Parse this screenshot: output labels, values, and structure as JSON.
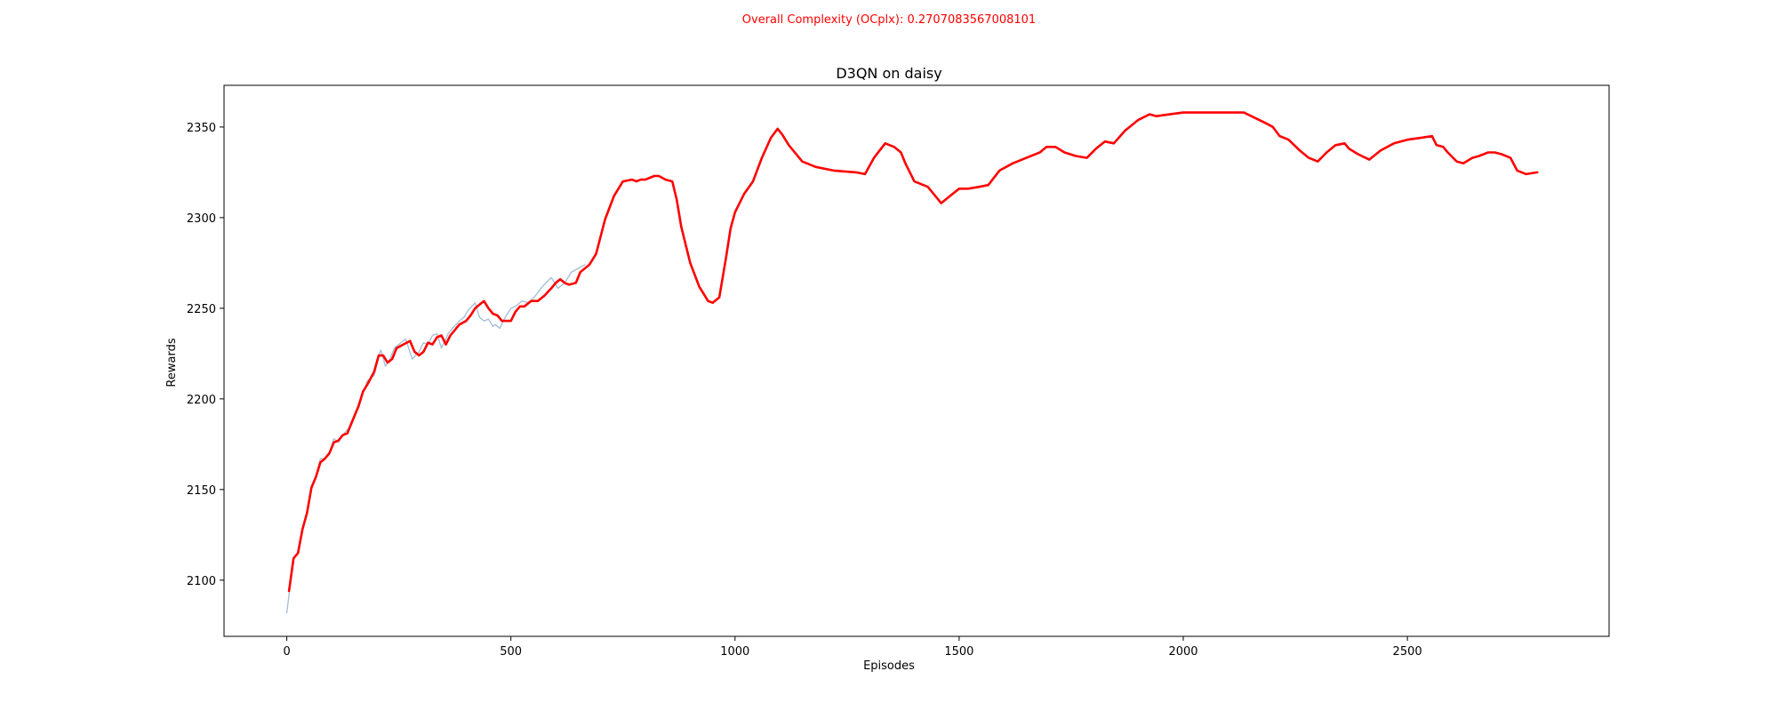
{
  "suptitle": "Overall Complexity (OCplx): 0.2707083567008101",
  "colors": {
    "suptitle": "#ff0000",
    "smoothed_line": "#ff0000",
    "raw_line": "#a9bfd6",
    "axes": "#000000",
    "background": "#ffffff"
  },
  "chart_data": {
    "type": "line",
    "title": "D3QN on daisy",
    "xlabel": "Episodes",
    "ylabel": "Rewards",
    "xlim": [
      -140,
      2950
    ],
    "ylim": [
      2069,
      2373
    ],
    "xticks": [
      0,
      500,
      1000,
      1500,
      2000,
      2500
    ],
    "yticks": [
      2100,
      2150,
      2200,
      2250,
      2300,
      2350
    ],
    "grid": false,
    "legend": "none",
    "series": [
      {
        "style": "raw",
        "x": [
          0,
          5,
          15,
          25,
          35,
          45,
          55,
          65,
          75,
          85,
          95,
          105,
          115,
          125,
          135,
          145,
          160,
          170,
          180,
          195,
          205,
          210,
          220,
          230,
          240,
          250,
          265,
          280,
          295,
          305,
          315,
          325,
          335,
          345,
          355,
          360,
          370,
          385,
          395,
          405,
          420,
          430,
          440,
          450,
          460,
          465,
          475,
          485,
          500,
          510,
          525,
          540,
          555,
          570,
          590,
          605,
          620,
          635,
          650,
          665
        ],
        "y": [
          2082,
          2092,
          2112,
          2115,
          2128,
          2137,
          2151,
          2157,
          2167,
          2167,
          2170,
          2178,
          2176,
          2180,
          2183,
          2186,
          2196,
          2203,
          2210,
          2213,
          2224,
          2227,
          2218,
          2222,
          2228,
          2230,
          2233,
          2222,
          2226,
          2231,
          2230,
          2235,
          2236,
          2228,
          2233,
          2236,
          2239,
          2243,
          2245,
          2249,
          2253,
          2245,
          2243,
          2244,
          2240,
          2241,
          2239,
          2244,
          2250,
          2251,
          2254,
          2253,
          2257,
          2262,
          2267,
          2261,
          2264,
          2270,
          2272,
          2274
        ]
      },
      {
        "style": "smoothed",
        "x": [
          5,
          15,
          25,
          35,
          45,
          55,
          65,
          75,
          85,
          95,
          105,
          115,
          125,
          135,
          145,
          160,
          170,
          180,
          195,
          205,
          215,
          225,
          235,
          245,
          260,
          275,
          285,
          295,
          305,
          315,
          325,
          335,
          345,
          355,
          365,
          375,
          385,
          400,
          410,
          420,
          430,
          440,
          450,
          460,
          470,
          480,
          490,
          500,
          510,
          520,
          530,
          545,
          560,
          575,
          590,
          600,
          610,
          620,
          630,
          645,
          655,
          665,
          675,
          690,
          710,
          730,
          750,
          770,
          780,
          790,
          800,
          810,
          820,
          830,
          845,
          860,
          870,
          880,
          900,
          920,
          940,
          950,
          965,
          980,
          990,
          1000,
          1020,
          1040,
          1060,
          1080,
          1095,
          1105,
          1120,
          1150,
          1180,
          1220,
          1270,
          1290,
          1310,
          1335,
          1355,
          1370,
          1380,
          1400,
          1430,
          1460,
          1480,
          1500,
          1520,
          1545,
          1565,
          1590,
          1620,
          1650,
          1680,
          1695,
          1715,
          1735,
          1760,
          1785,
          1805,
          1825,
          1845,
          1870,
          1900,
          1925,
          1940,
          1970,
          2000,
          2050,
          2100,
          2135,
          2160,
          2185,
          2200,
          2215,
          2235,
          2260,
          2280,
          2300,
          2320,
          2340,
          2360,
          2370,
          2390,
          2415,
          2440,
          2470,
          2500,
          2530,
          2555,
          2565,
          2580,
          2590,
          2610,
          2625,
          2645,
          2660,
          2680,
          2695,
          2710,
          2730,
          2745,
          2765,
          2790
        ],
        "y": [
          2094,
          2112,
          2115,
          2128,
          2137,
          2151,
          2157,
          2165,
          2167,
          2170,
          2176,
          2177,
          2180,
          2181,
          2187,
          2196,
          2204,
          2208,
          2215,
          2224,
          2224,
          2220,
          2222,
          2228,
          2230,
          2232,
          2226,
          2224,
          2226,
          2231,
          2230,
          2234,
          2235,
          2230,
          2235,
          2238,
          2241,
          2243,
          2246,
          2250,
          2252,
          2254,
          2250,
          2247,
          2246,
          2243,
          2243,
          2243,
          2248,
          2251,
          2251,
          2254,
          2254,
          2257,
          2261,
          2264,
          2266,
          2264,
          2263,
          2264,
          2270,
          2272,
          2274,
          2280,
          2299,
          2312,
          2320,
          2321,
          2320,
          2321,
          2321,
          2322,
          2323,
          2323,
          2321,
          2320,
          2310,
          2295,
          2275,
          2262,
          2254,
          2253,
          2256,
          2278,
          2294,
          2303,
          2313,
          2320,
          2333,
          2344,
          2349,
          2346,
          2340,
          2331,
          2328,
          2326,
          2325,
          2324,
          2333,
          2341,
          2339,
          2336,
          2330,
          2320,
          2317,
          2308,
          2312,
          2316,
          2316,
          2317,
          2318,
          2326,
          2330,
          2333,
          2336,
          2339,
          2339,
          2336,
          2334,
          2333,
          2338,
          2342,
          2341,
          2348,
          2354,
          2357,
          2356,
          2357,
          2358,
          2358,
          2358,
          2358,
          2355,
          2352,
          2350,
          2345,
          2343,
          2337,
          2333,
          2331,
          2336,
          2340,
          2341,
          2338,
          2335,
          2332,
          2337,
          2341,
          2343,
          2344,
          2345,
          2340,
          2339,
          2336,
          2331,
          2330,
          2333,
          2334,
          2336,
          2336,
          2335,
          2333,
          2326,
          2324,
          2325
        ]
      }
    ]
  }
}
